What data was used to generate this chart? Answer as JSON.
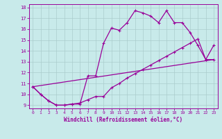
{
  "xlabel": "Windchill (Refroidissement éolien,°C)",
  "bg_color": "#c8eaea",
  "line_color": "#990099",
  "grid_color": "#aacccc",
  "xlim": [
    -0.5,
    23.5
  ],
  "ylim": [
    8.7,
    18.3
  ],
  "yticks": [
    9,
    10,
    11,
    12,
    13,
    14,
    15,
    16,
    17,
    18
  ],
  "xticks": [
    0,
    1,
    2,
    3,
    4,
    5,
    6,
    7,
    8,
    9,
    10,
    11,
    12,
    13,
    14,
    15,
    16,
    17,
    18,
    19,
    20,
    21,
    22,
    23
  ],
  "line1_x": [
    0,
    1,
    2,
    3,
    4,
    5,
    6,
    7,
    8,
    9,
    10,
    11,
    12,
    13,
    14,
    15,
    16,
    17,
    18,
    19,
    20,
    21,
    22,
    23
  ],
  "line1_y": [
    10.7,
    10.0,
    9.4,
    9.0,
    9.0,
    9.1,
    9.1,
    11.7,
    11.7,
    14.7,
    16.1,
    15.9,
    16.6,
    17.7,
    17.5,
    17.2,
    16.6,
    17.7,
    16.6,
    16.6,
    15.7,
    14.5,
    13.2,
    14.5
  ],
  "line2_x": [
    0,
    1,
    2,
    3,
    4,
    5,
    6,
    7,
    8,
    9,
    10,
    11,
    12,
    13,
    14,
    15,
    16,
    17,
    18,
    19,
    20,
    21,
    22,
    23
  ],
  "line2_y": [
    10.7,
    10.0,
    9.4,
    9.0,
    9.0,
    9.1,
    9.2,
    9.5,
    9.8,
    9.8,
    10.6,
    11.0,
    11.5,
    11.9,
    12.3,
    12.7,
    13.1,
    13.5,
    13.9,
    14.3,
    14.7,
    15.1,
    13.2,
    13.2
  ],
  "line3_x": [
    0,
    23
  ],
  "line3_y": [
    10.7,
    13.2
  ]
}
